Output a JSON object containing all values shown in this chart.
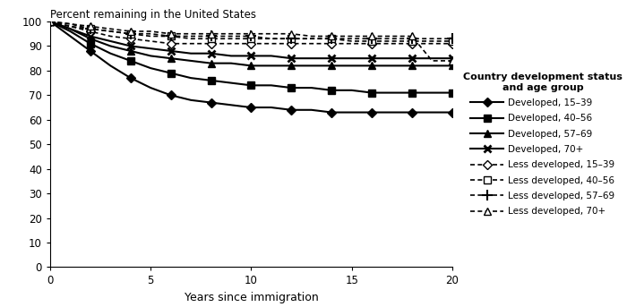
{
  "title": "Percent remaining in the United States",
  "xlabel": "Years since immigration",
  "xlim": [
    0,
    20
  ],
  "ylim": [
    0,
    100
  ],
  "yticks": [
    0,
    10,
    20,
    30,
    40,
    50,
    60,
    70,
    80,
    90,
    100
  ],
  "xticks": [
    0,
    5,
    10,
    15,
    20
  ],
  "legend_title": "Country development status\nand age group",
  "series": [
    {
      "label": "Developed, 15–39",
      "linestyle": "solid",
      "marker": "D",
      "markerfacecolor": "black",
      "markeredgecolor": "black",
      "markersize": 5,
      "markeredgewidth": 1.0,
      "linewidth": 1.5,
      "data_y": [
        100,
        94,
        88,
        82,
        77,
        73,
        70,
        68,
        67,
        66,
        65,
        65,
        64,
        64,
        63,
        63,
        63,
        63,
        63,
        63,
        63
      ]
    },
    {
      "label": "Developed, 40–56",
      "linestyle": "solid",
      "marker": "s",
      "markerfacecolor": "black",
      "markeredgecolor": "black",
      "markersize": 6,
      "markeredgewidth": 1.0,
      "linewidth": 1.5,
      "data_y": [
        100,
        96,
        91,
        87,
        84,
        81,
        79,
        77,
        76,
        75,
        74,
        74,
        73,
        73,
        72,
        72,
        71,
        71,
        71,
        71,
        71
      ]
    },
    {
      "label": "Developed, 57–69",
      "linestyle": "solid",
      "marker": "^",
      "markerfacecolor": "black",
      "markeredgecolor": "black",
      "markersize": 6,
      "markeredgewidth": 1.0,
      "linewidth": 1.5,
      "data_y": [
        100,
        97,
        93,
        90,
        88,
        86,
        85,
        84,
        83,
        83,
        82,
        82,
        82,
        82,
        82,
        82,
        82,
        82,
        82,
        82,
        82
      ]
    },
    {
      "label": "Developed, 70+",
      "linestyle": "solid",
      "marker": "x",
      "markerfacecolor": "black",
      "markeredgecolor": "black",
      "markersize": 6,
      "markeredgewidth": 2.0,
      "linewidth": 1.5,
      "data_y": [
        100,
        97,
        94,
        92,
        90,
        89,
        88,
        87,
        87,
        86,
        86,
        86,
        85,
        85,
        85,
        85,
        85,
        85,
        85,
        85,
        85
      ]
    },
    {
      "label": "Less developed, 15–39",
      "linestyle": "dashed",
      "marker": "D",
      "markerfacecolor": "white",
      "markeredgecolor": "black",
      "markersize": 5,
      "markeredgewidth": 1.0,
      "linewidth": 1.2,
      "data_y": [
        100,
        98,
        96,
        94,
        93,
        92,
        91,
        91,
        91,
        91,
        91,
        91,
        91,
        91,
        91,
        91,
        91,
        91,
        91,
        91,
        91
      ]
    },
    {
      "label": "Less developed, 40–56",
      "linestyle": "dashed",
      "marker": "s",
      "markerfacecolor": "white",
      "markeredgecolor": "black",
      "markersize": 6,
      "markeredgewidth": 1.0,
      "linewidth": 1.2,
      "data_y": [
        100,
        98,
        97,
        96,
        95,
        94,
        94,
        93,
        93,
        93,
        93,
        93,
        93,
        93,
        93,
        92,
        92,
        92,
        92,
        92,
        92
      ]
    },
    {
      "label": "Less developed, 57–69",
      "linestyle": "dashed",
      "marker": "+",
      "markerfacecolor": "black",
      "markeredgecolor": "black",
      "markersize": 8,
      "markeredgewidth": 1.5,
      "linewidth": 1.2,
      "data_y": [
        100,
        99,
        97,
        96,
        95,
        95,
        94,
        94,
        94,
        94,
        94,
        93,
        93,
        93,
        93,
        93,
        93,
        93,
        93,
        93,
        93
      ]
    },
    {
      "label": "Less developed, 70+",
      "linestyle": "dashed",
      "marker": "^",
      "markerfacecolor": "white",
      "markeredgecolor": "black",
      "markersize": 6,
      "markeredgewidth": 1.0,
      "linewidth": 1.2,
      "data_y": [
        100,
        99,
        98,
        97,
        96,
        96,
        95,
        95,
        95,
        95,
        95,
        95,
        95,
        94,
        94,
        94,
        94,
        94,
        94,
        84,
        84
      ]
    }
  ]
}
